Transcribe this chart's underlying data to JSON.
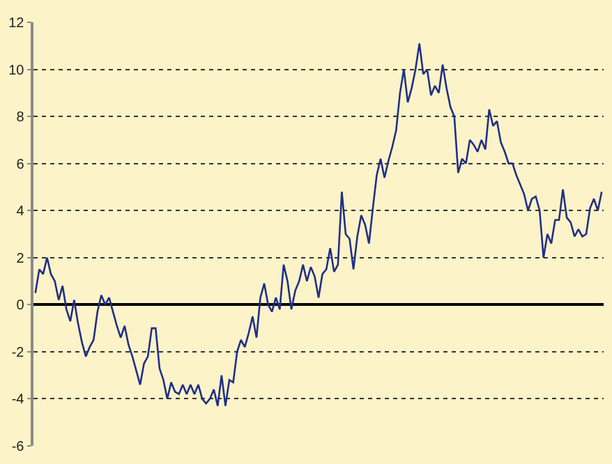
{
  "chart_data": {
    "type": "line",
    "categories": [
      null,
      null,
      null,
      null,
      null,
      null,
      null,
      null,
      null,
      null,
      null,
      null,
      null,
      null,
      null,
      null,
      null,
      null,
      null,
      null,
      null,
      null,
      null,
      null,
      null,
      null,
      null,
      null,
      null,
      null,
      null,
      null,
      null,
      null,
      null,
      null,
      null,
      null,
      null,
      null,
      null,
      null,
      null,
      null,
      null,
      null,
      null,
      null,
      null,
      null,
      null,
      null,
      null,
      null,
      null,
      null,
      null,
      null,
      null,
      null,
      null,
      null,
      null,
      null,
      null,
      null,
      null,
      null,
      null,
      null,
      null,
      null,
      null,
      null,
      null,
      null,
      null,
      null,
      null,
      null,
      null,
      null,
      null,
      null,
      null,
      null,
      null,
      null,
      null,
      null,
      null,
      null,
      null,
      null,
      null,
      null,
      null,
      null,
      null,
      null,
      null,
      null,
      null,
      null,
      null,
      null,
      null,
      null,
      null,
      null,
      null,
      null,
      null,
      null,
      null,
      null,
      null,
      null,
      null,
      null,
      null,
      null,
      null,
      null,
      null,
      null,
      null,
      null,
      null,
      null,
      null,
      null,
      null,
      null,
      null,
      null,
      null,
      null,
      null,
      null,
      null,
      null,
      null,
      null,
      null,
      null,
      null
    ],
    "series": [
      {
        "color": "#1f2f86",
        "values": [
          0.5,
          1.5,
          1.3,
          2.0,
          1.3,
          1.0,
          0.2,
          0.8,
          -0.2,
          -0.7,
          0.2,
          -0.8,
          -1.6,
          -2.2,
          -1.8,
          -1.5,
          -0.3,
          0.4,
          0.0,
          0.3,
          -0.3,
          -0.9,
          -1.4,
          -0.9,
          -1.7,
          -2.2,
          -2.8,
          -3.4,
          -2.5,
          -2.2,
          -1.0,
          -1.0,
          -2.7,
          -3.2,
          -4.0,
          -3.3,
          -3.7,
          -3.8,
          -3.4,
          -3.8,
          -3.4,
          -3.8,
          -3.4,
          -4.0,
          -4.2,
          -4.0,
          -3.6,
          -4.3,
          -3.0,
          -4.3,
          -3.2,
          -3.3,
          -2.0,
          -1.5,
          -1.8,
          -1.2,
          -0.5,
          -1.4,
          0.3,
          0.9,
          0.0,
          -0.3,
          0.3,
          -0.2,
          1.7,
          1.0,
          -0.2,
          0.6,
          1.0,
          1.7,
          1.0,
          1.6,
          1.2,
          0.3,
          1.3,
          1.5,
          2.4,
          1.4,
          1.7,
          4.8,
          3.0,
          2.8,
          1.5,
          2.9,
          3.8,
          3.4,
          2.6,
          4.1,
          5.5,
          6.2,
          5.4,
          6.1,
          6.7,
          7.4,
          9.0,
          10.0,
          8.6,
          9.2,
          10.0,
          11.1,
          9.8,
          10.0,
          8.9,
          9.3,
          9.0,
          10.2,
          9.2,
          8.4,
          8.0,
          5.6,
          6.2,
          6.0,
          7.0,
          6.8,
          6.5,
          7.0,
          6.6,
          8.3,
          7.6,
          7.8,
          6.9,
          6.5,
          6.0,
          6.0,
          5.5,
          5.1,
          4.7,
          4.0,
          4.5,
          4.6,
          4.0,
          2.0,
          3.0,
          2.6,
          3.6,
          3.6,
          4.9,
          3.7,
          3.5,
          2.9,
          3.2,
          2.9,
          3.0,
          4.1,
          4.5,
          4.0,
          4.8
        ]
      }
    ],
    "ylim": [
      -6,
      12
    ],
    "yticks": [
      -6,
      -4,
      -2,
      0,
      2,
      4,
      6,
      8,
      10,
      12
    ],
    "grid": "y",
    "marker": "none",
    "line_style": "solid"
  }
}
